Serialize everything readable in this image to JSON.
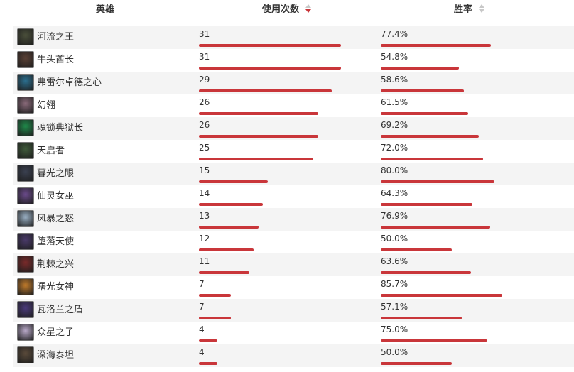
{
  "header": {
    "hero_label": "英雄",
    "uses_label": "使用次数",
    "winrate_label": "胜率"
  },
  "bar_color": "#c9363a",
  "rows": [
    {
      "name": "河流之王",
      "uses": "31",
      "uses_fraction": 1.0,
      "winrate": "77.4%",
      "win_fraction": 0.774,
      "avatar_color": "#4a4f3a"
    },
    {
      "name": "牛头酋长",
      "uses": "31",
      "uses_fraction": 1.0,
      "winrate": "54.8%",
      "win_fraction": 0.548,
      "avatar_color": "#5a4034"
    },
    {
      "name": "弗雷尔卓德之心",
      "uses": "29",
      "uses_fraction": 0.935,
      "winrate": "58.6%",
      "win_fraction": 0.586,
      "avatar_color": "#2b6f8f"
    },
    {
      "name": "幻翎",
      "uses": "26",
      "uses_fraction": 0.839,
      "winrate": "61.5%",
      "win_fraction": 0.615,
      "avatar_color": "#8a6a7a"
    },
    {
      "name": "魂锁典狱长",
      "uses": "26",
      "uses_fraction": 0.839,
      "winrate": "69.2%",
      "win_fraction": 0.692,
      "avatar_color": "#1f8a4a"
    },
    {
      "name": "天启者",
      "uses": "25",
      "uses_fraction": 0.806,
      "winrate": "72.0%",
      "win_fraction": 0.72,
      "avatar_color": "#3f5a3a"
    },
    {
      "name": "暮光之眼",
      "uses": "15",
      "uses_fraction": 0.484,
      "winrate": "80.0%",
      "win_fraction": 0.8,
      "avatar_color": "#3a4050"
    },
    {
      "name": "仙灵女巫",
      "uses": "14",
      "uses_fraction": 0.452,
      "winrate": "64.3%",
      "win_fraction": 0.643,
      "avatar_color": "#6a4a8a"
    },
    {
      "name": "风暴之怒",
      "uses": "13",
      "uses_fraction": 0.419,
      "winrate": "76.9%",
      "win_fraction": 0.769,
      "avatar_color": "#9ab0c4"
    },
    {
      "name": "堕落天使",
      "uses": "12",
      "uses_fraction": 0.387,
      "winrate": "50.0%",
      "win_fraction": 0.5,
      "avatar_color": "#4a3a6a"
    },
    {
      "name": "荆棘之兴",
      "uses": "11",
      "uses_fraction": 0.355,
      "winrate": "63.6%",
      "win_fraction": 0.636,
      "avatar_color": "#7a2a2a"
    },
    {
      "name": "曙光女神",
      "uses": "7",
      "uses_fraction": 0.226,
      "winrate": "85.7%",
      "win_fraction": 0.857,
      "avatar_color": "#c07a2a"
    },
    {
      "name": "瓦洛兰之盾",
      "uses": "7",
      "uses_fraction": 0.226,
      "winrate": "57.1%",
      "win_fraction": 0.571,
      "avatar_color": "#4a3a7a"
    },
    {
      "name": "众星之子",
      "uses": "4",
      "uses_fraction": 0.129,
      "winrate": "75.0%",
      "win_fraction": 0.75,
      "avatar_color": "#b8a8c8"
    },
    {
      "name": "深海泰坦",
      "uses": "4",
      "uses_fraction": 0.129,
      "winrate": "50.0%",
      "win_fraction": 0.5,
      "avatar_color": "#5a4a3a"
    }
  ]
}
